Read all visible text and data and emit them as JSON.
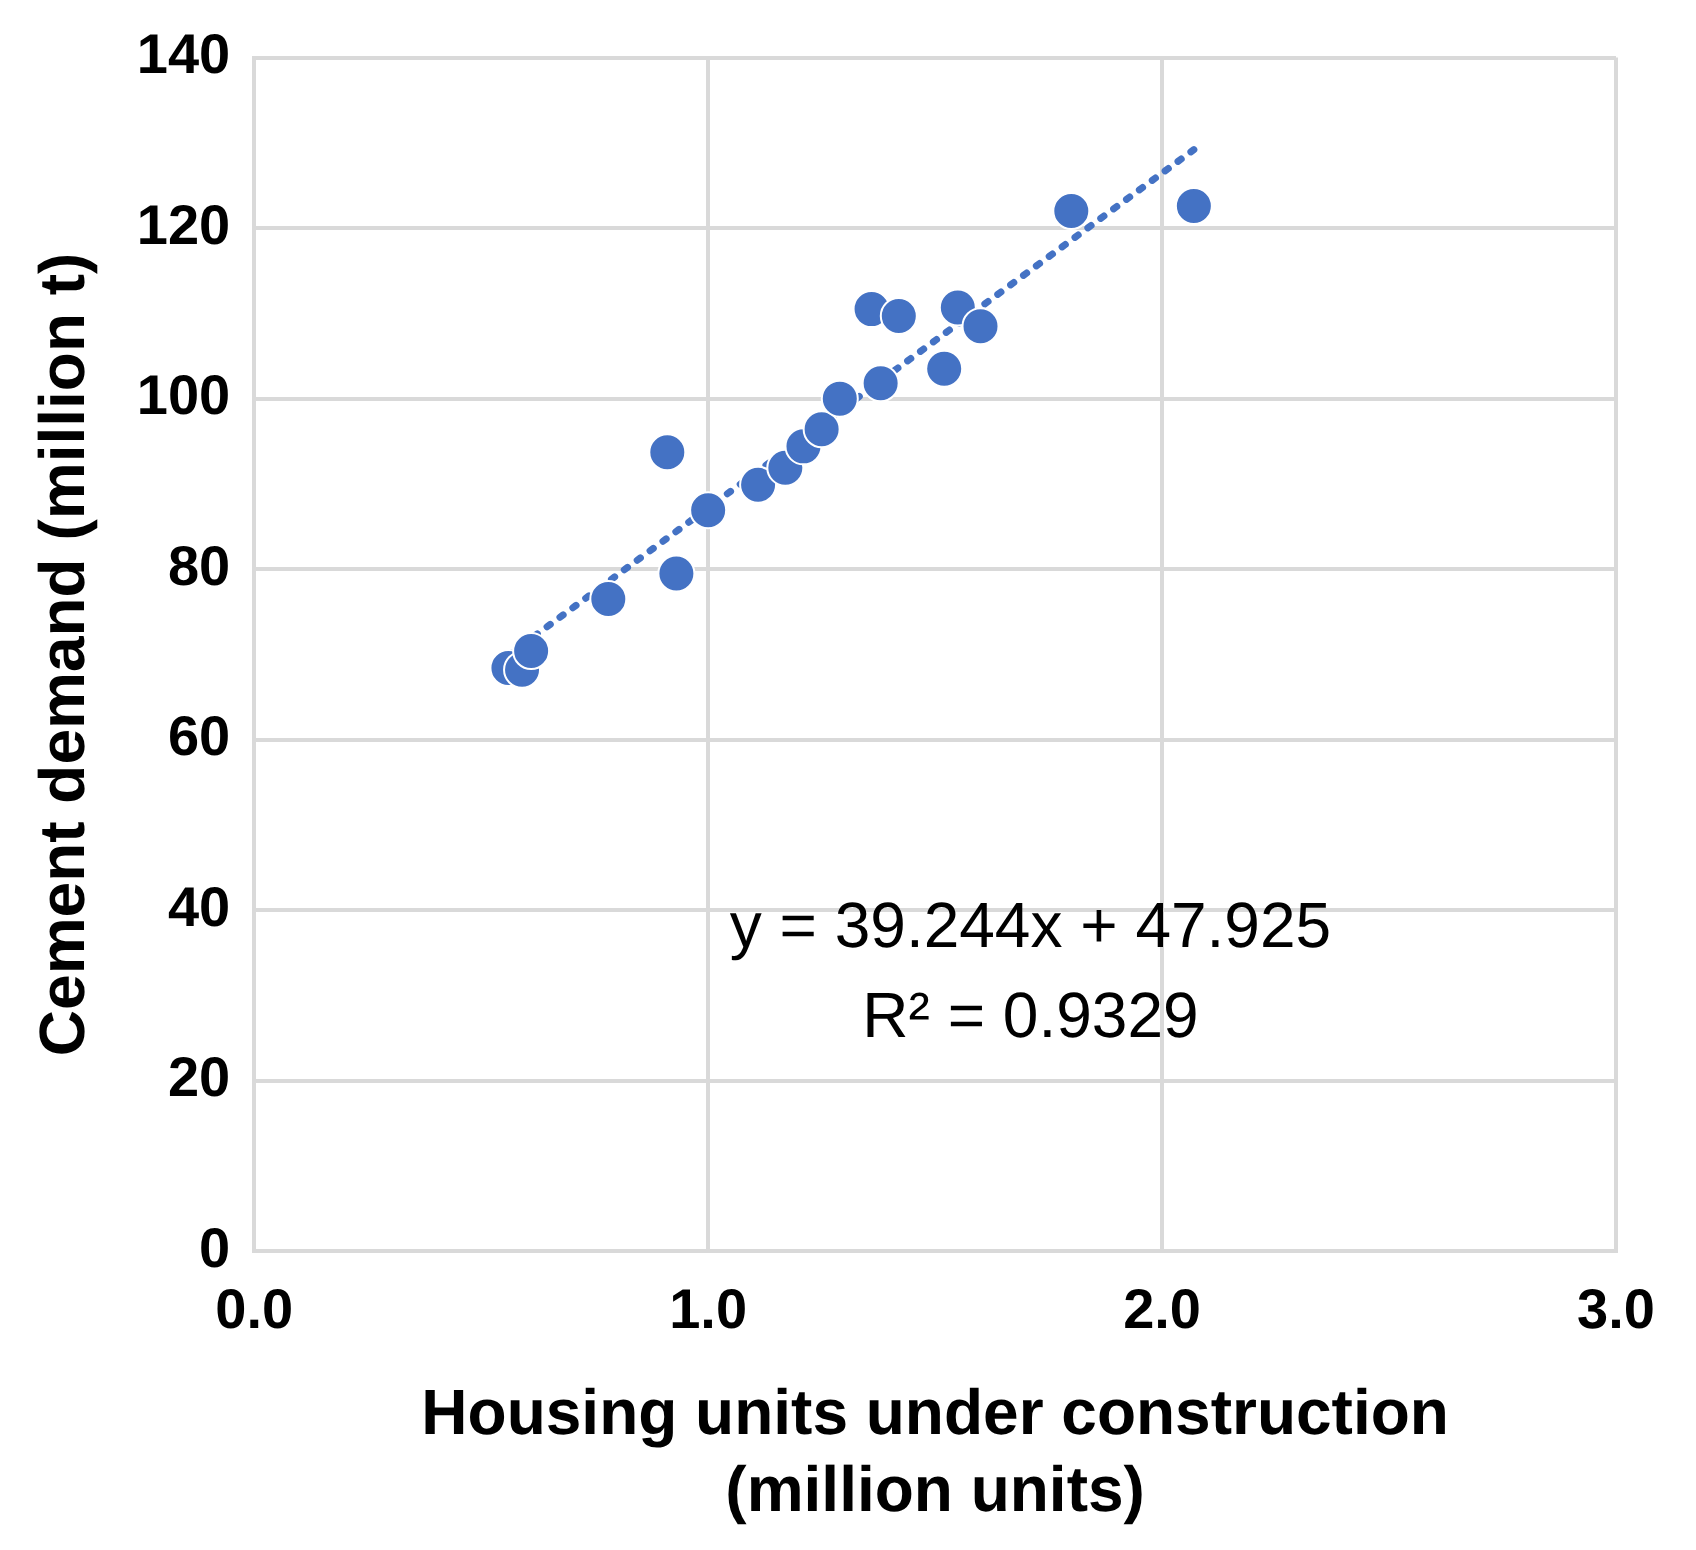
{
  "chart_data": {
    "type": "scatter",
    "xlabel": "Housing units under construction\n(million units)",
    "ylabel": "Cement demand (million t)",
    "xlim": [
      0,
      3
    ],
    "xticks": [
      {
        "value": 0,
        "label": "0.0"
      },
      {
        "value": 1,
        "label": "1.0"
      },
      {
        "value": 2,
        "label": "2.0"
      },
      {
        "value": 3,
        "label": "3.0"
      }
    ],
    "ylim": [
      0,
      140
    ],
    "yticks": [
      0,
      20,
      40,
      60,
      80,
      100,
      120,
      140
    ],
    "grid": true,
    "legend": false,
    "marker": "circle",
    "series": [
      {
        "color": "#4472c4",
        "x": [
          0.56,
          0.59,
          0.61,
          0.78,
          0.91,
          0.93,
          1.0,
          1.11,
          1.17,
          1.21,
          1.25,
          1.29,
          1.36,
          1.42,
          1.38,
          1.52,
          1.55,
          1.6,
          1.8,
          2.07
        ],
        "values": [
          68.4,
          68.2,
          70.4,
          76.5,
          93.7,
          79.5,
          86.9,
          89.9,
          91.9,
          94.4,
          96.4,
          100.0,
          110.5,
          109.7,
          101.8,
          103.5,
          110.7,
          108.5,
          122.0,
          122.6
        ]
      },
      {
        "type": "line",
        "color": "#4472c4",
        "line_style": "dotted",
        "marker": "none",
        "x": [
          0.56,
          2.07
        ],
        "values": [
          69.9,
          129.2
        ]
      }
    ],
    "annotations": [
      "y = 39.244x + 47.925",
      "R² = 0.9329"
    ]
  }
}
